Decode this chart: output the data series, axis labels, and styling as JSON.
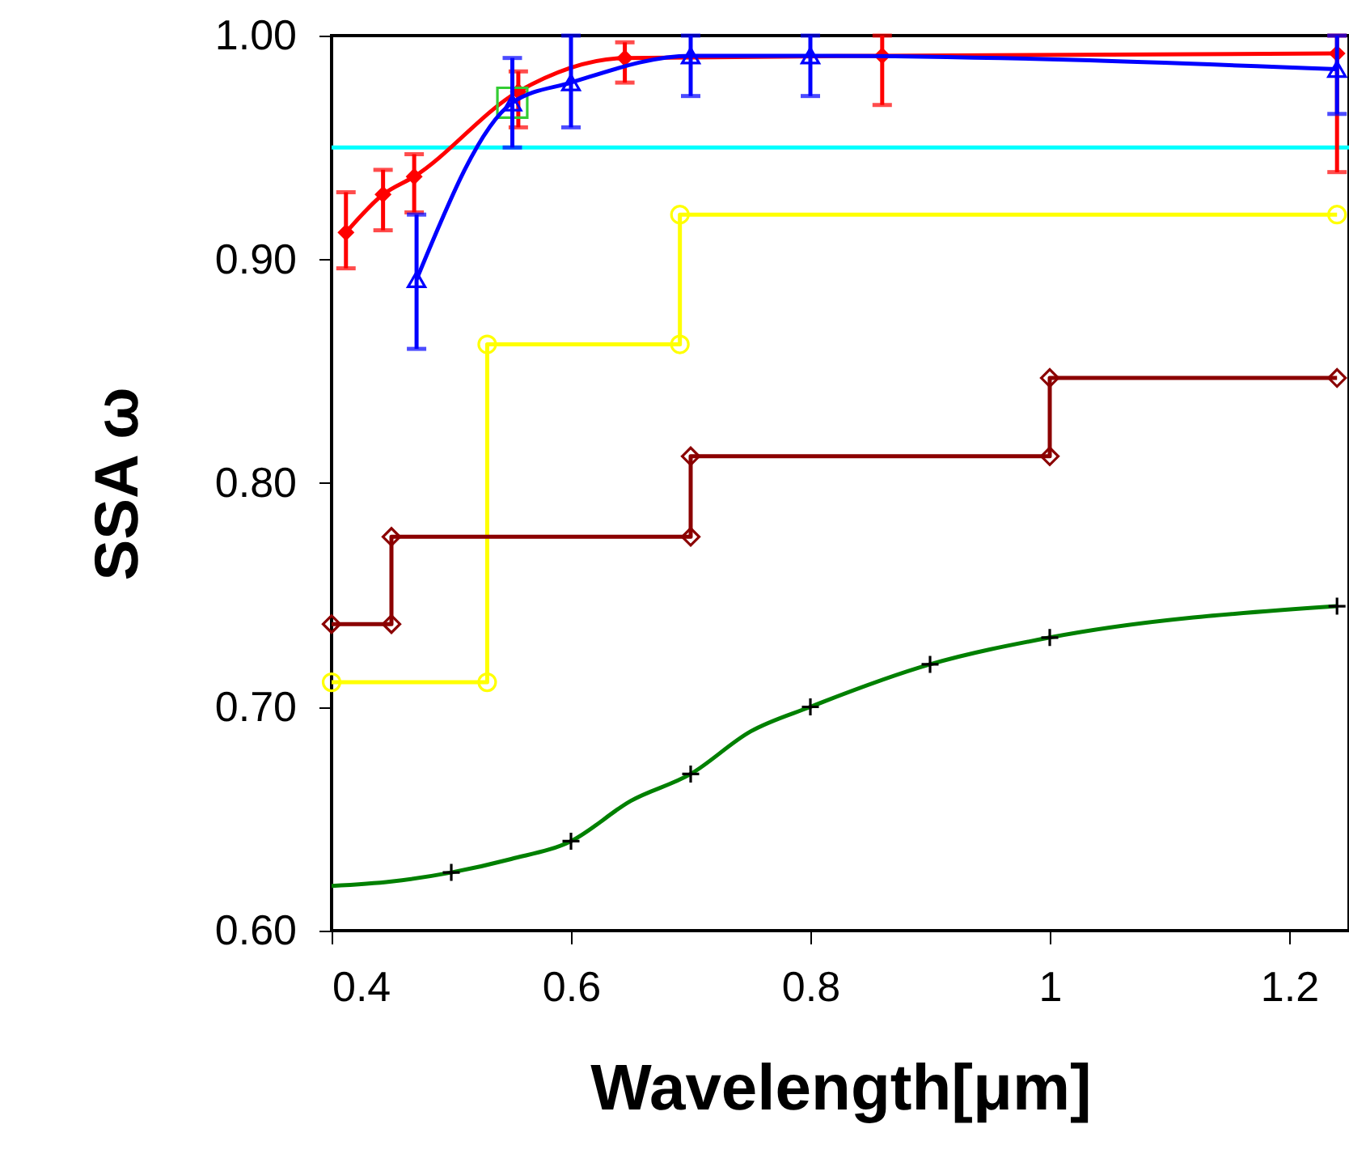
{
  "chart_data": {
    "type": "line",
    "xlabel": "Wavelength[μm]",
    "ylabel": "SSA ω",
    "xlim": [
      0.4,
      1.25
    ],
    "ylim": [
      0.6,
      1.0
    ],
    "xticks": [
      0.4,
      0.6,
      0.8,
      1,
      1.2
    ],
    "yticks": [
      {
        "value": 0.6,
        "label": "0.60"
      },
      {
        "value": 0.7,
        "label": "0.70"
      },
      {
        "value": 0.8,
        "label": "0.80"
      },
      {
        "value": 0.9,
        "label": "0.90"
      },
      {
        "value": 1.0,
        "label": "1.00"
      }
    ],
    "grid": false,
    "line_style": "solid",
    "ref_lines": [
      {
        "axis": "y",
        "value": 0.95,
        "color": "#00ffff"
      }
    ],
    "series": [
      {
        "color": "#ffff00",
        "marker": "circle",
        "x": [
          0.4,
          0.53,
          0.53,
          0.691,
          0.691,
          1.24
        ],
        "values": [
          0.711,
          0.711,
          0.862,
          0.862,
          0.92,
          0.92
        ]
      },
      {
        "color": "#8b0000",
        "marker": "diamond",
        "x": [
          0.4,
          0.45,
          0.45,
          0.7,
          0.7,
          1.0,
          1.0,
          1.24
        ],
        "values": [
          0.737,
          0.737,
          0.776,
          0.776,
          0.812,
          0.812,
          0.847,
          0.847
        ]
      },
      {
        "color": "#008000",
        "marker": "none",
        "x": [
          0.4,
          0.45,
          0.5,
          0.55,
          0.6,
          0.65,
          0.7,
          0.75,
          0.8,
          0.9,
          1.0,
          1.24
        ],
        "values": [
          0.62,
          0.622,
          0.626,
          0.632,
          0.64,
          0.658,
          0.67,
          0.689,
          0.7,
          0.719,
          0.731,
          0.745
        ]
      },
      {
        "type": "scatter",
        "color": "#000000",
        "marker": "cross",
        "x": [
          0.5,
          0.6,
          0.7,
          0.8,
          0.9,
          1.0,
          1.24
        ],
        "values": [
          0.626,
          0.64,
          0.67,
          0.7,
          0.719,
          0.731,
          0.745
        ]
      },
      {
        "color": "#ff0000",
        "marker": "diamond",
        "x": [
          0.412,
          0.443,
          0.469,
          0.556,
          0.645,
          0.86,
          1.24
        ],
        "values": [
          0.912,
          0.929,
          0.937,
          0.975,
          0.99,
          0.991,
          0.992
        ],
        "errors": [
          [
            0.896,
            0.93
          ],
          [
            0.913,
            0.94
          ],
          [
            0.921,
            0.947
          ],
          [
            0.959,
            0.984
          ],
          [
            0.979,
            0.997
          ],
          [
            0.969,
            1.0
          ],
          [
            0.939,
            1.0
          ]
        ]
      },
      {
        "type": "scatter",
        "color": "#33cc33",
        "marker": "square",
        "x": [
          0.551
        ],
        "values": [
          0.97
        ]
      },
      {
        "color": "#0000ff",
        "marker": "triangle",
        "x": [
          0.471,
          0.551,
          0.6,
          0.7,
          0.8,
          1.24
        ],
        "values": [
          0.891,
          0.97,
          0.979,
          0.991,
          0.991,
          0.985
        ],
        "errors": [
          [
            0.86,
            0.92
          ],
          [
            0.95,
            0.99
          ],
          [
            0.959,
            1.0
          ],
          [
            0.973,
            1.0
          ],
          [
            0.973,
            1.0
          ],
          [
            0.965,
            1.0
          ]
        ]
      }
    ]
  }
}
